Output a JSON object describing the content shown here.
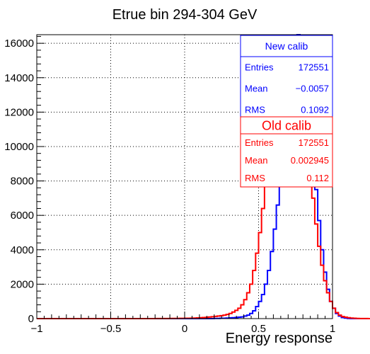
{
  "chart_data": {
    "type": "histogram",
    "title": "Etrue bin 294-304 GeV",
    "xlabel": "Energy response",
    "ylabel": "",
    "xlim": [
      -1,
      1
    ],
    "ylim": [
      0,
      16500
    ],
    "grid": true,
    "x_ticks": [
      "−1",
      "−0.5",
      "0",
      "0.5",
      "1"
    ],
    "x_tick_values": [
      -1,
      -0.5,
      0,
      0.5,
      1
    ],
    "y_ticks": [
      "0",
      "2000",
      "4000",
      "6000",
      "8000",
      "10000",
      "12000",
      "14000",
      "16000"
    ],
    "y_tick_values": [
      0,
      2000,
      4000,
      6000,
      8000,
      10000,
      12000,
      14000,
      16000
    ],
    "bin_edges_start": -1,
    "bin_width": 0.02,
    "series": [
      {
        "name": "New calib",
        "color": "#0000ff",
        "values": [
          0,
          0,
          0,
          0,
          0,
          0,
          0,
          0,
          0,
          0,
          0,
          0,
          0,
          0,
          0,
          0,
          0,
          0,
          0,
          0,
          0,
          0,
          0,
          0,
          0,
          0,
          0,
          0,
          0,
          0,
          0,
          0,
          0,
          0,
          0,
          0,
          0,
          0,
          0,
          0,
          0,
          0,
          0,
          0,
          0,
          0,
          0,
          0,
          0,
          0,
          0,
          0,
          0,
          0,
          0,
          0,
          0,
          0,
          0,
          0,
          10,
          10,
          20,
          20,
          30,
          40,
          50,
          60,
          80,
          100,
          150,
          200,
          300,
          450,
          700,
          1000,
          1400,
          2000,
          2800,
          3900,
          5200,
          6600,
          8300,
          10200,
          12000,
          13700,
          15000,
          16000,
          16500,
          16000,
          15000,
          13200,
          11500,
          9500,
          7500,
          5700,
          4000,
          2700,
          1700,
          1000,
          600,
          300,
          150,
          60,
          30,
          10,
          0,
          0,
          0,
          0,
          0,
          0,
          0,
          0,
          0,
          0,
          0,
          0,
          0,
          0,
          0,
          0,
          0,
          0,
          0,
          0,
          0,
          0,
          0,
          0,
          0,
          0,
          0,
          0,
          0,
          0,
          0,
          0,
          0,
          0,
          0,
          0,
          0,
          0,
          0,
          0,
          0,
          0,
          0,
          0
        ]
      },
      {
        "name": "Old calib",
        "color": "#ff0000",
        "values": [
          0,
          0,
          0,
          0,
          0,
          0,
          0,
          0,
          0,
          0,
          0,
          0,
          0,
          0,
          0,
          0,
          0,
          0,
          0,
          0,
          0,
          0,
          0,
          0,
          0,
          0,
          0,
          0,
          0,
          0,
          0,
          0,
          0,
          0,
          0,
          0,
          0,
          0,
          0,
          0,
          5,
          5,
          5,
          5,
          5,
          10,
          10,
          10,
          15,
          15,
          20,
          20,
          25,
          30,
          40,
          50,
          60,
          70,
          90,
          110,
          130,
          150,
          170,
          200,
          240,
          300,
          380,
          480,
          600,
          800,
          1100,
          1500,
          2000,
          2800,
          3800,
          5000,
          6400,
          7900,
          9600,
          11300,
          12800,
          14100,
          15100,
          15900,
          16300,
          16400,
          16100,
          15300,
          14300,
          13000,
          11500,
          10000,
          8500,
          7000,
          5500,
          4200,
          3100,
          2200,
          1500,
          1000,
          600,
          350,
          200,
          120,
          80,
          50,
          30,
          20,
          10,
          5,
          5,
          5,
          0,
          0,
          0,
          0,
          0,
          0,
          0,
          0,
          0,
          0,
          0,
          0,
          0,
          0,
          0,
          0,
          0,
          0,
          0,
          0,
          0,
          0,
          0,
          0,
          0,
          0,
          0,
          0,
          0,
          0,
          0,
          0,
          0,
          0,
          0,
          0,
          0,
          0
        ]
      }
    ],
    "stats_boxes": [
      {
        "title": "New calib",
        "color": "#0000ff",
        "rows": [
          {
            "label": "Entries",
            "value": "172551"
          },
          {
            "label": "Mean",
            "value": "−0.0057"
          },
          {
            "label": "RMS",
            "value": "0.1092"
          }
        ]
      },
      {
        "title": "Old calib",
        "color": "#ff0000",
        "rows": [
          {
            "label": "Entries",
            "value": "172551"
          },
          {
            "label": "Mean",
            "value": "0.002945"
          },
          {
            "label": "RMS",
            "value": "0.112"
          }
        ]
      }
    ]
  }
}
